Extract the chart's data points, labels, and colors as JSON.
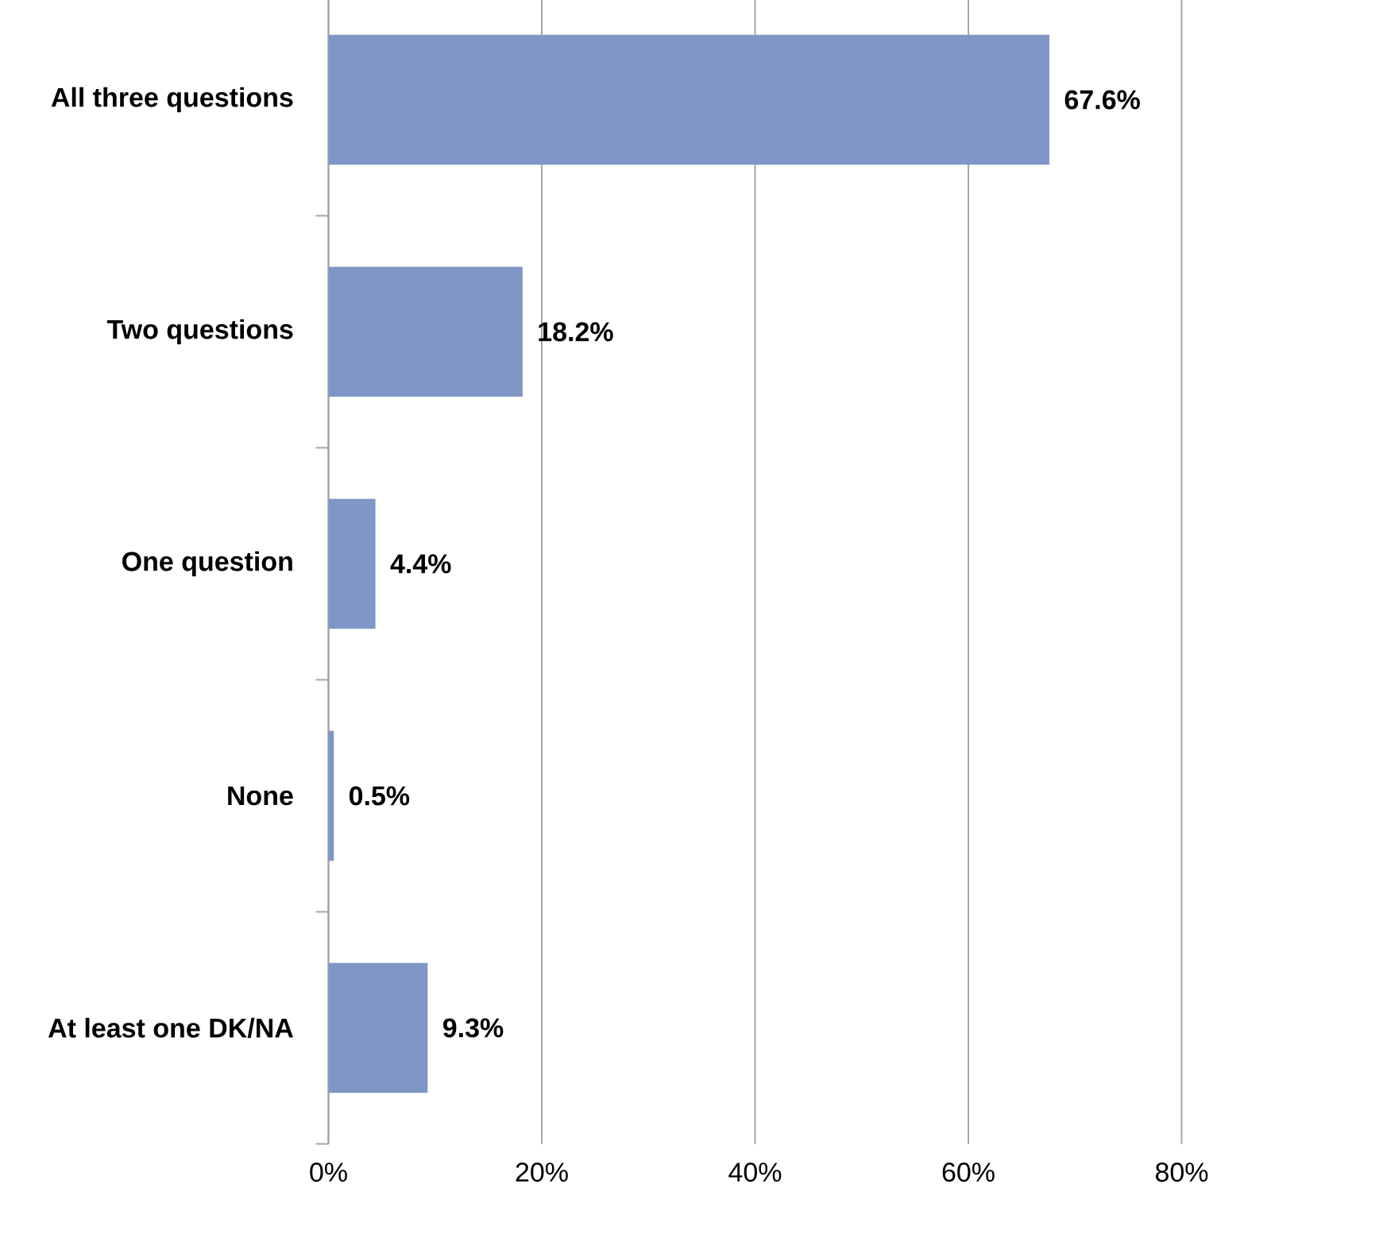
{
  "chart_data": {
    "type": "bar",
    "orientation": "horizontal",
    "categories": [
      "All three questions",
      "Two questions",
      "One question",
      "None",
      "At least one DK/NA"
    ],
    "values": [
      67.6,
      18.2,
      4.4,
      0.5,
      9.3
    ],
    "value_labels": [
      "67.6%",
      "18.2%",
      "4.4%",
      "0.5%",
      "9.3%"
    ],
    "color": "#7f96c6",
    "xlim": [
      0,
      80
    ],
    "xticks": [
      {
        "value": 0,
        "label": "0%"
      },
      {
        "value": 20,
        "label": "20%"
      },
      {
        "value": 40,
        "label": "40%"
      },
      {
        "value": 60,
        "label": "60%"
      },
      {
        "value": 80,
        "label": "80%"
      }
    ],
    "grid": "x"
  }
}
